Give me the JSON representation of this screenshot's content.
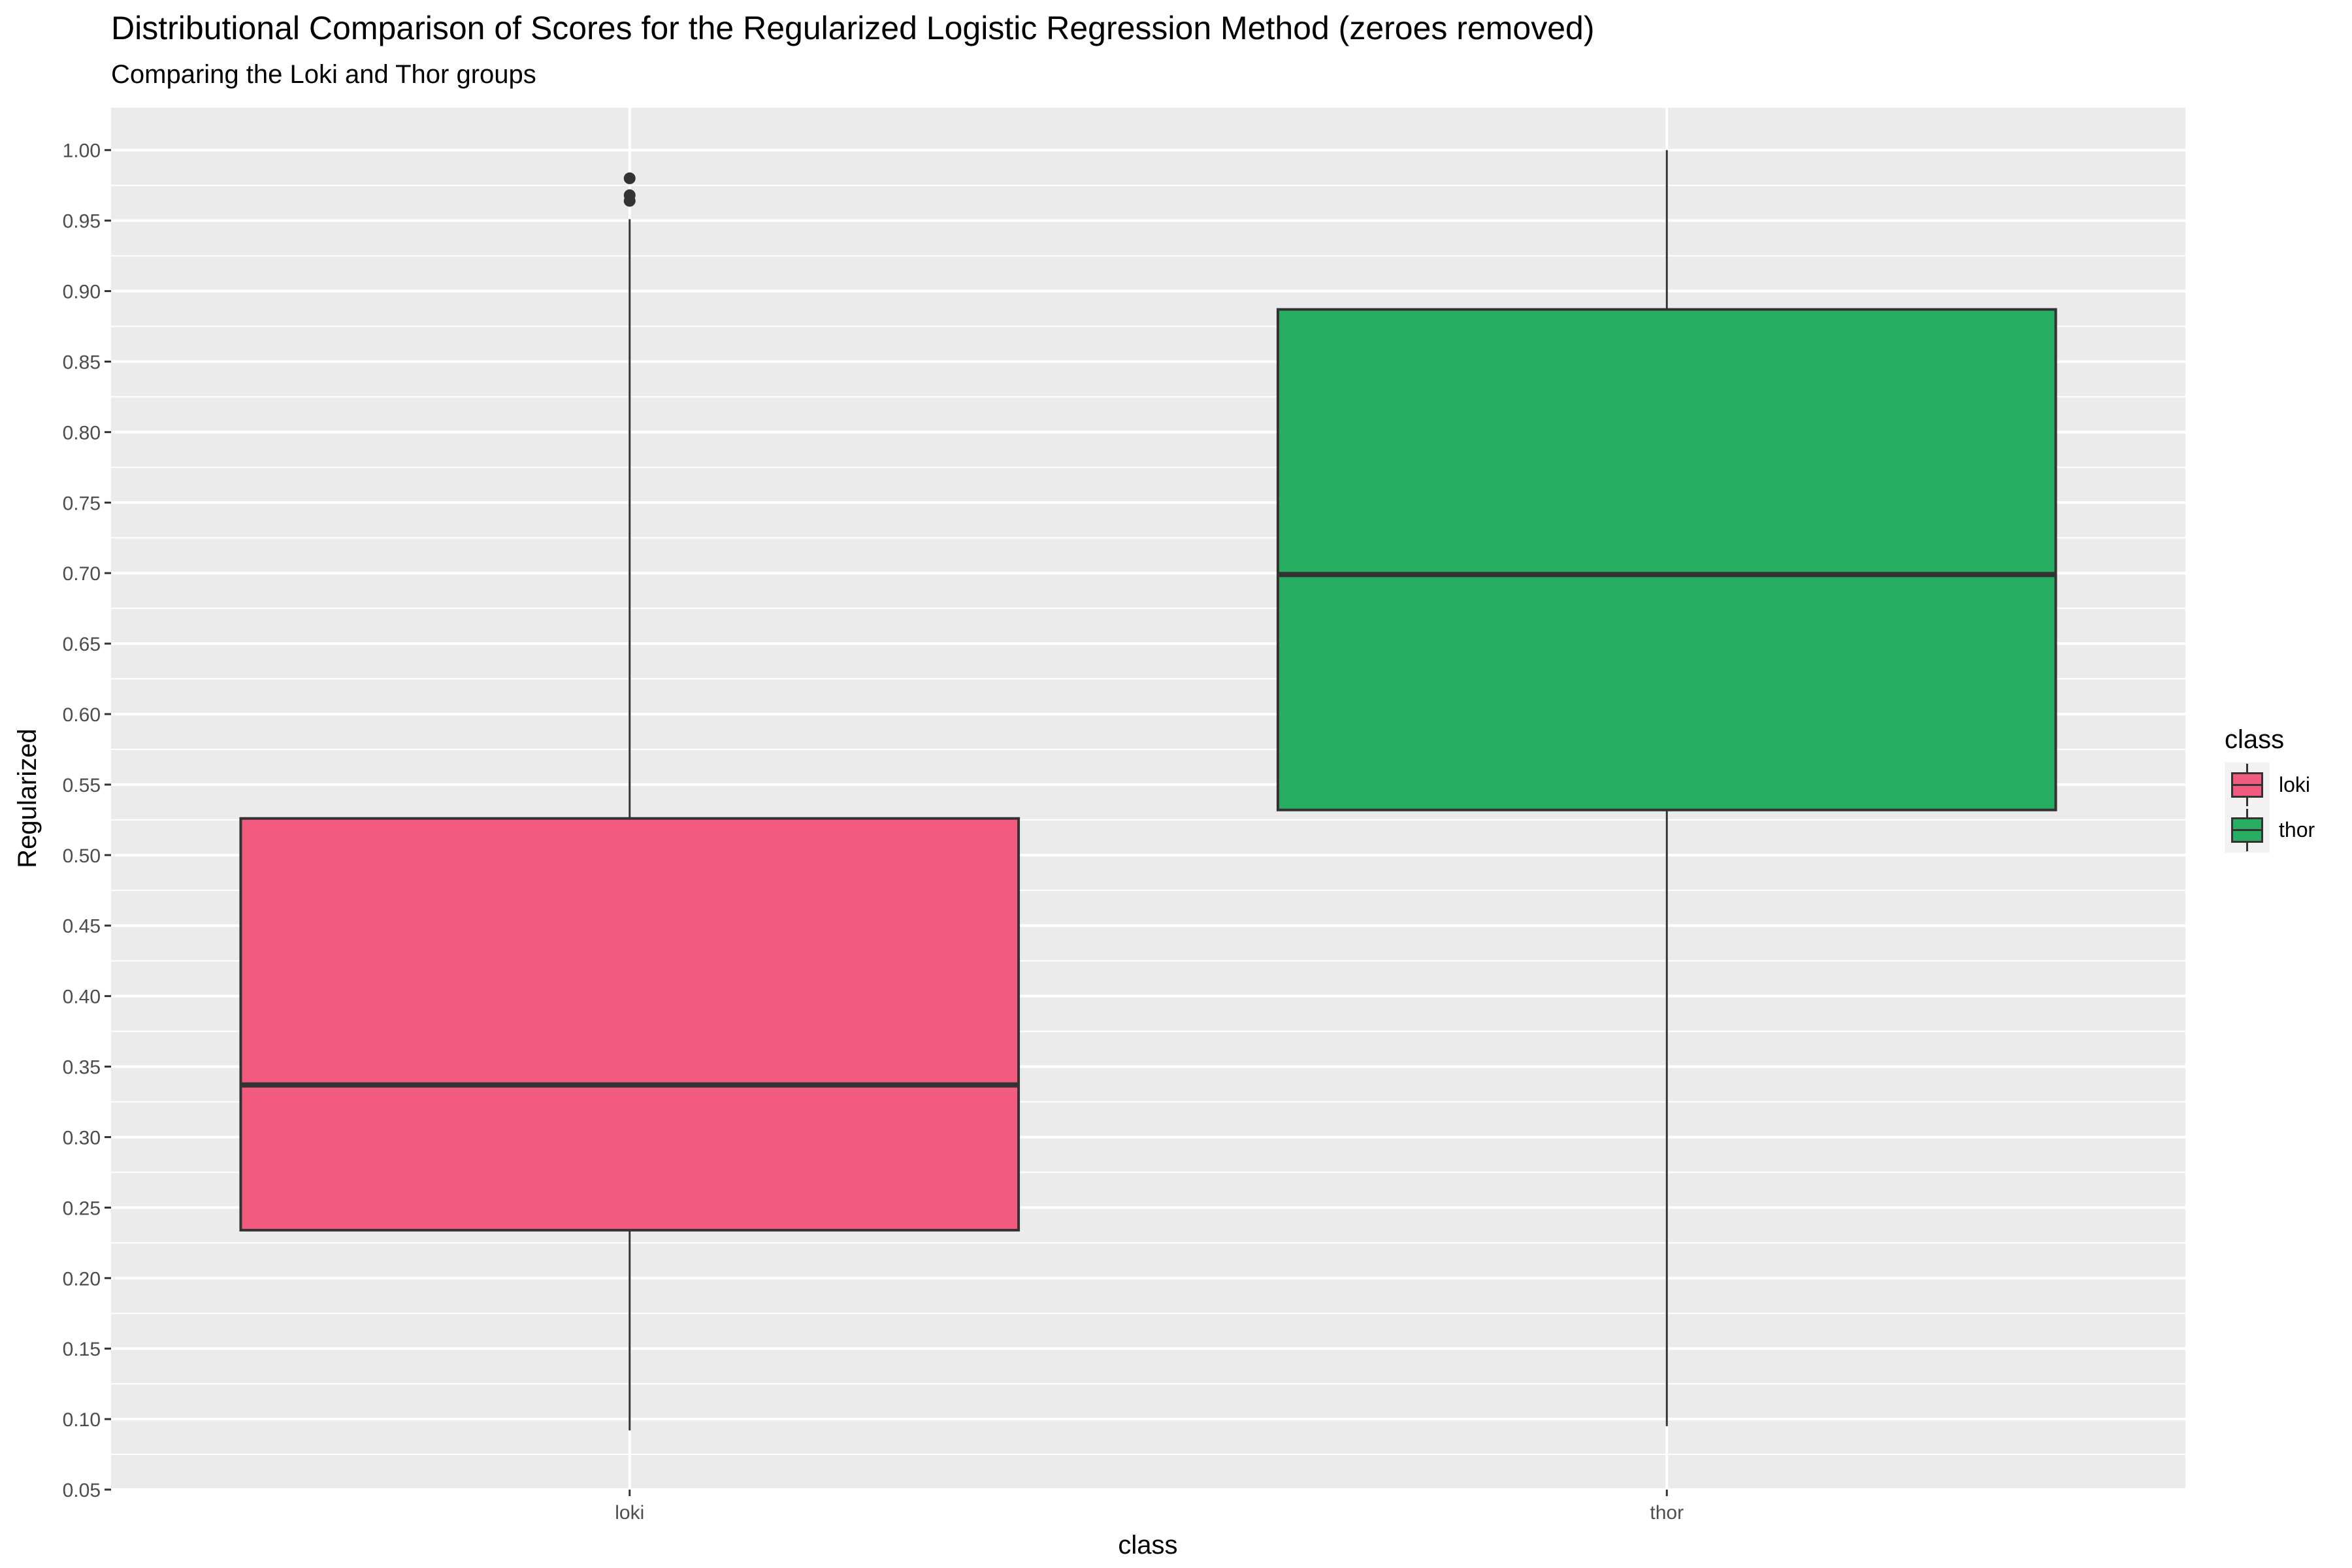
{
  "chart_data": {
    "type": "boxplot",
    "title": "Distributional Comparison of Scores for the Regularized Logistic Regression Method (zeroes removed)",
    "subtitle": "Comparing the Loki and Thor groups",
    "xlabel": "class",
    "ylabel": "Regularized",
    "categories": [
      "loki",
      "thor"
    ],
    "ylim": [
      0.05,
      1.03
    ],
    "yticks": [
      0.05,
      0.1,
      0.15,
      0.2,
      0.25,
      0.3,
      0.35,
      0.4,
      0.45,
      0.5,
      0.55,
      0.6,
      0.65,
      0.7,
      0.75,
      0.8,
      0.85,
      0.9,
      0.95,
      1.0
    ],
    "ytick_labels": [
      "0.05",
      "0.10",
      "0.15",
      "0.20",
      "0.25",
      "0.30",
      "0.35",
      "0.40",
      "0.45",
      "0.50",
      "0.55",
      "0.60",
      "0.65",
      "0.70",
      "0.75",
      "0.80",
      "0.85",
      "0.90",
      "0.95",
      "1.00"
    ],
    "series": [
      {
        "name": "loki",
        "color": "#F25B7E",
        "whisker_low": 0.092,
        "q1": 0.234,
        "median": 0.337,
        "q3": 0.526,
        "whisker_high": 0.951,
        "outliers": [
          0.964,
          0.968,
          0.98
        ]
      },
      {
        "name": "thor",
        "color": "#27AE62",
        "whisker_low": 0.095,
        "q1": 0.532,
        "median": 0.699,
        "q3": 0.887,
        "whisker_high": 1.0,
        "outliers": []
      }
    ],
    "legend": {
      "title": "class",
      "position": "right",
      "entries": [
        "loki",
        "thor"
      ]
    },
    "grid": true,
    "panel_background": "#EBEBEB"
  }
}
